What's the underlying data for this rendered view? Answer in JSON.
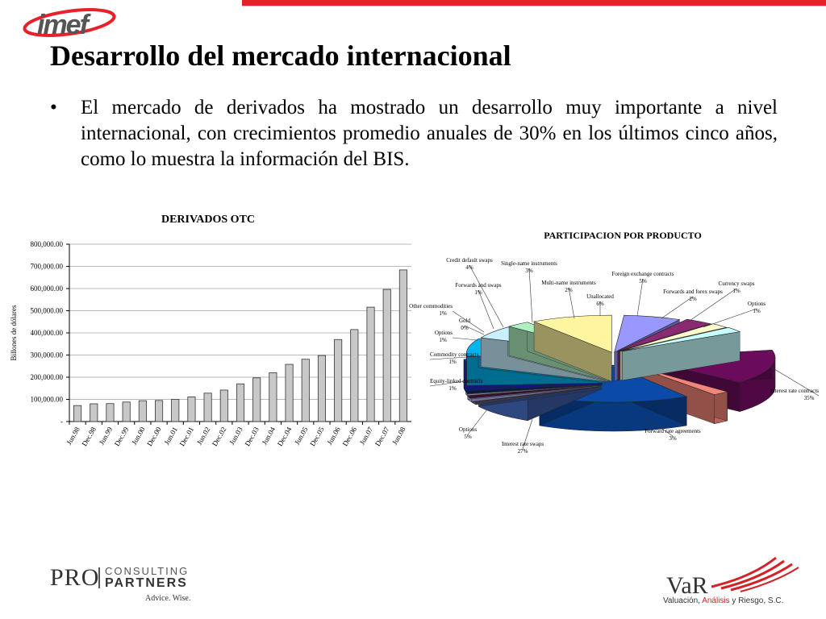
{
  "header": {
    "logo_text": "imef",
    "title": "Desarrollo del mercado internacional"
  },
  "body": {
    "bullet_symbol": "•",
    "text": "El mercado de derivados ha mostrado un desarrollo muy importante a nivel internacional, con crecimientos promedio anuales de 30% en los últimos cinco años, como lo muestra la información del BIS."
  },
  "colors": {
    "accent": "#e8202a",
    "bar_fill": "#c8c8c8"
  },
  "chart_data": [
    {
      "type": "bar",
      "title": "DERIVADOS OTC",
      "xlabel": "",
      "ylabel": "Billones de dólares",
      "ylim": [
        0,
        800000
      ],
      "grid": true,
      "y_tick_values": [
        0,
        100000,
        200000,
        300000,
        400000,
        500000,
        600000,
        700000,
        800000
      ],
      "y_tick_labels": [
        "-",
        "100,000.00",
        "200,000.00",
        "300,000.00",
        "400,000.00",
        "500,000.00",
        "600,000.00",
        "700,000.00",
        "800,000.00"
      ],
      "categories": [
        "Jun.98",
        "Dec.98",
        "Jun.99",
        "Dec.99",
        "Jun.00",
        "Dec.00",
        "Jun.01",
        "Dec.01",
        "Jun.02",
        "Dec.02",
        "Jun.03",
        "Dec.03",
        "Jun.04",
        "Dec.04",
        "Jun.05",
        "Dec.05",
        "Jun.06",
        "Dec.06",
        "Jun.07",
        "Dec.07",
        "Jun.08"
      ],
      "values": [
        72000,
        80000,
        81000,
        88000,
        94000,
        95000,
        100000,
        111000,
        128000,
        142000,
        170000,
        197000,
        220000,
        258000,
        281000,
        298000,
        370000,
        415000,
        516000,
        596000,
        684000
      ]
    },
    {
      "type": "pie",
      "title": "PARTICIPACION POR PRODUCTO",
      "slices": [
        {
          "label": "Interest rate contracts",
          "value": 35,
          "pct": "35%",
          "color": "#6b0b5c"
        },
        {
          "label": "Forward rate agreements",
          "value": 3,
          "pct": "3%",
          "color": "#f4857a"
        },
        {
          "label": "Interest rate swaps",
          "value": 27,
          "pct": "27%",
          "color": "#0b4aa6"
        },
        {
          "label": "Options",
          "value": 5,
          "pct": "5%",
          "color": "#3d5ea8"
        },
        {
          "label": "Equity-linked contracts",
          "value": 1,
          "pct": "1%",
          "color": "#5c5c7a"
        },
        {
          "label": "Commodity contracts",
          "value": 1,
          "pct": "1%",
          "color": "#b8b8ff"
        },
        {
          "label": "Options",
          "value": 1,
          "pct": "1%",
          "color": "#5a1a4a"
        },
        {
          "label": "Gold",
          "value": 0,
          "pct": "0%",
          "color": "#e0e0ff"
        },
        {
          "label": "Other commodities",
          "value": 1,
          "pct": "1%",
          "color": "#0a2a6a"
        },
        {
          "label": "Forwards and swaps",
          "value": 1,
          "pct": "1%",
          "color": "#1c2cc8"
        },
        {
          "label": "Credit default swaps",
          "value": 4,
          "pct": "4%",
          "color": "#00b4f0"
        },
        {
          "label": "Single-name instruments",
          "value": 3,
          "pct": "3%",
          "color": "#c8f0ff"
        },
        {
          "label": "Multi-name instruments",
          "value": 2,
          "pct": "2%",
          "color": "#b0f0c0"
        },
        {
          "label": "Unallocated",
          "value": 6,
          "pct": "6%",
          "color": "#fff5a0"
        },
        {
          "label": "Foreign exchange contracts",
          "value": 5,
          "pct": "5%",
          "color": "#9898ff"
        },
        {
          "label": "Forwards and forex swaps",
          "value": 2,
          "pct": "2%",
          "color": "#8a2a72"
        },
        {
          "label": "Currency swaps",
          "value": 1,
          "pct": "1%",
          "color": "#fffacc"
        },
        {
          "label": "Options",
          "value": 1,
          "pct": "1%",
          "color": "#c8ffff"
        }
      ]
    }
  ],
  "footer": {
    "pro_left": "PRO",
    "pro_consulting": "CONSULTING",
    "pro_partners": "PARTNERS",
    "pro_tagline": "Advice. Wise.",
    "var_logo": "VaR",
    "var_sub_1": "Valuación, ",
    "var_sub_2": "Análisis",
    "var_sub_3": " y Riesgo, S.C."
  }
}
